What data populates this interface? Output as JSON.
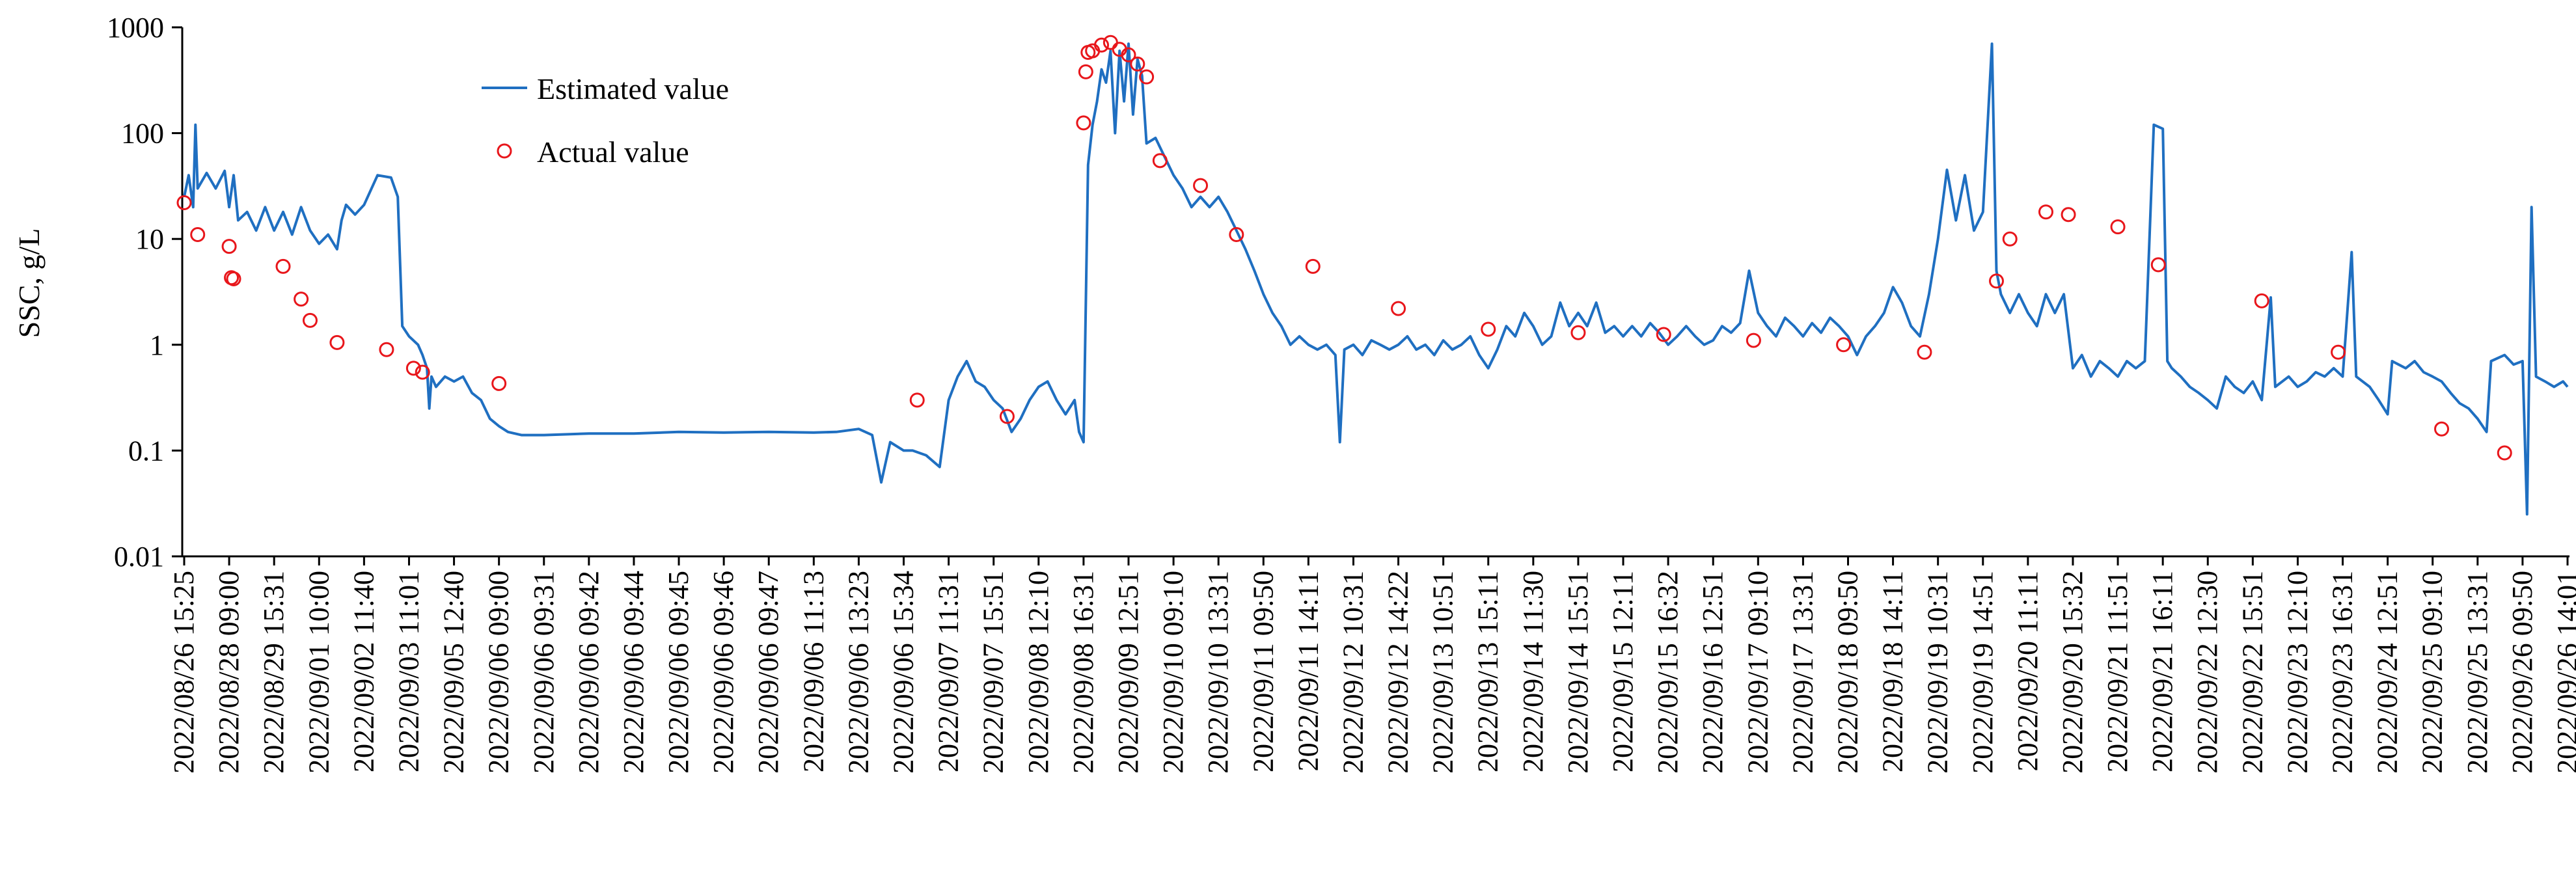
{
  "colors": {
    "estimated_line": "#1f6fc1",
    "actual_marker": "#e8161b",
    "axis": "#000000",
    "background": "#ffffff"
  },
  "chart_data": {
    "type": "line",
    "ylabel": "SSC, g/L",
    "yscale": "log",
    "ylim": [
      0.01,
      1000
    ],
    "yticks": [
      "0.01",
      "0.1",
      "1",
      "10",
      "100",
      "1000"
    ],
    "grid": false,
    "legend_position": "top-left",
    "xtick_labels": [
      "2022/08/26 15:25",
      "2022/08/28 09:00",
      "2022/08/29 15:31",
      "2022/09/01 10:00",
      "2022/09/02 11:40",
      "2022/09/03 11:01",
      "2022/09/05 12:40",
      "2022/09/06 09:00",
      "2022/09/06 09:31",
      "2022/09/06 09:42",
      "2022/09/06 09:44",
      "2022/09/06 09:45",
      "2022/09/06 09:46",
      "2022/09/06 09:47",
      "2022/09/06 11:13",
      "2022/09/06 13:23",
      "2022/09/06 15:34",
      "2022/09/07 11:31",
      "2022/09/07 15:51",
      "2022/09/08 12:10",
      "2022/09/08 16:31",
      "2022/09/09 12:51",
      "2022/09/10 09:10",
      "2022/09/10 13:31",
      "2022/09/11 09:50",
      "2022/09/11 14:11",
      "2022/09/12 10:31",
      "2022/09/12 14:22",
      "2022/09/13 10:51",
      "2022/09/13 15:11",
      "2022/09/14 11:30",
      "2022/09/14 15:51",
      "2022/09/15 12:11",
      "2022/09/15 16:32",
      "2022/09/16 12:51",
      "2022/09/17 09:10",
      "2022/09/17 13:31",
      "2022/09/18 09:50",
      "2022/09/18 14:11",
      "2022/09/19 10:31",
      "2022/09/19 14:51",
      "2022/09/20 11:11",
      "2022/09/20 15:32",
      "2022/09/21 11:51",
      "2022/09/21 16:11",
      "2022/09/22 12:30",
      "2022/09/22 15:51",
      "2022/09/23 12:10",
      "2022/09/23 16:31",
      "2022/09/24 12:51",
      "2022/09/25 09:10",
      "2022/09/25 13:31",
      "2022/09/26 09:50",
      "2022/09/26 14:01"
    ],
    "series": [
      {
        "name": "Estimated value",
        "style": "line",
        "points": [
          [
            0,
            25
          ],
          [
            0.1,
            40
          ],
          [
            0.2,
            20
          ],
          [
            0.25,
            120
          ],
          [
            0.3,
            30
          ],
          [
            0.5,
            42
          ],
          [
            0.7,
            30
          ],
          [
            0.9,
            44
          ],
          [
            1.0,
            20
          ],
          [
            1.1,
            40
          ],
          [
            1.2,
            15
          ],
          [
            1.4,
            18
          ],
          [
            1.6,
            12
          ],
          [
            1.8,
            20
          ],
          [
            2.0,
            12
          ],
          [
            2.2,
            18
          ],
          [
            2.4,
            11
          ],
          [
            2.6,
            20
          ],
          [
            2.8,
            12
          ],
          [
            3.0,
            9
          ],
          [
            3.2,
            11
          ],
          [
            3.4,
            8
          ],
          [
            3.5,
            15
          ],
          [
            3.6,
            21
          ],
          [
            3.8,
            17
          ],
          [
            4.0,
            21
          ],
          [
            4.3,
            40
          ],
          [
            4.6,
            38
          ],
          [
            4.75,
            25
          ],
          [
            4.85,
            1.5
          ],
          [
            5.0,
            1.2
          ],
          [
            5.2,
            1.0
          ],
          [
            5.3,
            0.8
          ],
          [
            5.4,
            0.6
          ],
          [
            5.45,
            0.25
          ],
          [
            5.5,
            0.5
          ],
          [
            5.6,
            0.4
          ],
          [
            5.8,
            0.5
          ],
          [
            6.0,
            0.45
          ],
          [
            6.2,
            0.5
          ],
          [
            6.4,
            0.35
          ],
          [
            6.6,
            0.3
          ],
          [
            6.8,
            0.2
          ],
          [
            7.0,
            0.17
          ],
          [
            7.2,
            0.15
          ],
          [
            7.5,
            0.14
          ],
          [
            8,
            0.14
          ],
          [
            9,
            0.145
          ],
          [
            10,
            0.145
          ],
          [
            11,
            0.15
          ],
          [
            12,
            0.148
          ],
          [
            13,
            0.15
          ],
          [
            14,
            0.148
          ],
          [
            14.5,
            0.15
          ],
          [
            15.0,
            0.16
          ],
          [
            15.3,
            0.14
          ],
          [
            15.5,
            0.05
          ],
          [
            15.7,
            0.12
          ],
          [
            16.0,
            0.1
          ],
          [
            16.2,
            0.1
          ],
          [
            16.5,
            0.09
          ],
          [
            16.8,
            0.07
          ],
          [
            17.0,
            0.3
          ],
          [
            17.2,
            0.5
          ],
          [
            17.4,
            0.7
          ],
          [
            17.6,
            0.45
          ],
          [
            17.8,
            0.4
          ],
          [
            18.0,
            0.3
          ],
          [
            18.2,
            0.25
          ],
          [
            18.4,
            0.15
          ],
          [
            18.6,
            0.2
          ],
          [
            18.8,
            0.3
          ],
          [
            19.0,
            0.4
          ],
          [
            19.2,
            0.45
          ],
          [
            19.4,
            0.3
          ],
          [
            19.6,
            0.22
          ],
          [
            19.8,
            0.3
          ],
          [
            19.9,
            0.15
          ],
          [
            20.0,
            0.12
          ],
          [
            20.1,
            50
          ],
          [
            20.2,
            120
          ],
          [
            20.3,
            200
          ],
          [
            20.4,
            400
          ],
          [
            20.5,
            300
          ],
          [
            20.6,
            600
          ],
          [
            20.7,
            100
          ],
          [
            20.8,
            600
          ],
          [
            20.9,
            200
          ],
          [
            21.0,
            700
          ],
          [
            21.1,
            150
          ],
          [
            21.2,
            500
          ],
          [
            21.3,
            350
          ],
          [
            21.4,
            80
          ],
          [
            21.6,
            90
          ],
          [
            21.8,
            60
          ],
          [
            22.0,
            40
          ],
          [
            22.2,
            30
          ],
          [
            22.4,
            20
          ],
          [
            22.6,
            25
          ],
          [
            22.8,
            20
          ],
          [
            23.0,
            25
          ],
          [
            23.2,
            18
          ],
          [
            23.4,
            12
          ],
          [
            23.6,
            8
          ],
          [
            23.8,
            5
          ],
          [
            24.0,
            3
          ],
          [
            24.2,
            2
          ],
          [
            24.4,
            1.5
          ],
          [
            24.6,
            1.0
          ],
          [
            24.8,
            1.2
          ],
          [
            25.0,
            1.0
          ],
          [
            25.2,
            0.9
          ],
          [
            25.4,
            1.0
          ],
          [
            25.6,
            0.8
          ],
          [
            25.7,
            0.12
          ],
          [
            25.8,
            0.9
          ],
          [
            26.0,
            1.0
          ],
          [
            26.2,
            0.8
          ],
          [
            26.4,
            1.1
          ],
          [
            26.6,
            1.0
          ],
          [
            26.8,
            0.9
          ],
          [
            27.0,
            1.0
          ],
          [
            27.2,
            1.2
          ],
          [
            27.4,
            0.9
          ],
          [
            27.6,
            1.0
          ],
          [
            27.8,
            0.8
          ],
          [
            28.0,
            1.1
          ],
          [
            28.2,
            0.9
          ],
          [
            28.4,
            1.0
          ],
          [
            28.6,
            1.2
          ],
          [
            28.8,
            0.8
          ],
          [
            29.0,
            0.6
          ],
          [
            29.2,
            0.9
          ],
          [
            29.4,
            1.5
          ],
          [
            29.6,
            1.2
          ],
          [
            29.8,
            2.0
          ],
          [
            30.0,
            1.5
          ],
          [
            30.2,
            1.0
          ],
          [
            30.4,
            1.2
          ],
          [
            30.6,
            2.5
          ],
          [
            30.8,
            1.5
          ],
          [
            31.0,
            2.0
          ],
          [
            31.2,
            1.5
          ],
          [
            31.4,
            2.5
          ],
          [
            31.6,
            1.3
          ],
          [
            31.8,
            1.5
          ],
          [
            32.0,
            1.2
          ],
          [
            32.2,
            1.5
          ],
          [
            32.4,
            1.2
          ],
          [
            32.6,
            1.6
          ],
          [
            32.8,
            1.3
          ],
          [
            33.0,
            1.0
          ],
          [
            33.2,
            1.2
          ],
          [
            33.4,
            1.5
          ],
          [
            33.6,
            1.2
          ],
          [
            33.8,
            1.0
          ],
          [
            34.0,
            1.1
          ],
          [
            34.2,
            1.5
          ],
          [
            34.4,
            1.3
          ],
          [
            34.6,
            1.6
          ],
          [
            34.8,
            5.0
          ],
          [
            35.0,
            2.0
          ],
          [
            35.2,
            1.5
          ],
          [
            35.4,
            1.2
          ],
          [
            35.6,
            1.8
          ],
          [
            35.8,
            1.5
          ],
          [
            36.0,
            1.2
          ],
          [
            36.2,
            1.6
          ],
          [
            36.4,
            1.3
          ],
          [
            36.6,
            1.8
          ],
          [
            36.8,
            1.5
          ],
          [
            37.0,
            1.2
          ],
          [
            37.2,
            0.8
          ],
          [
            37.4,
            1.2
          ],
          [
            37.6,
            1.5
          ],
          [
            37.8,
            2.0
          ],
          [
            38.0,
            3.5
          ],
          [
            38.2,
            2.5
          ],
          [
            38.4,
            1.5
          ],
          [
            38.6,
            1.2
          ],
          [
            38.8,
            3.0
          ],
          [
            39.0,
            10
          ],
          [
            39.2,
            45
          ],
          [
            39.4,
            15
          ],
          [
            39.6,
            40
          ],
          [
            39.8,
            12
          ],
          [
            40.0,
            18
          ],
          [
            40.2,
            700
          ],
          [
            40.3,
            5
          ],
          [
            40.4,
            3
          ],
          [
            40.6,
            2
          ],
          [
            40.8,
            3
          ],
          [
            41.0,
            2
          ],
          [
            41.2,
            1.5
          ],
          [
            41.4,
            3
          ],
          [
            41.6,
            2
          ],
          [
            41.8,
            3
          ],
          [
            42.0,
            0.6
          ],
          [
            42.2,
            0.8
          ],
          [
            42.4,
            0.5
          ],
          [
            42.6,
            0.7
          ],
          [
            42.8,
            0.6
          ],
          [
            43.0,
            0.5
          ],
          [
            43.2,
            0.7
          ],
          [
            43.4,
            0.6
          ],
          [
            43.6,
            0.7
          ],
          [
            43.8,
            120
          ],
          [
            44.0,
            110
          ],
          [
            44.1,
            0.7
          ],
          [
            44.2,
            0.6
          ],
          [
            44.4,
            0.5
          ],
          [
            44.6,
            0.4
          ],
          [
            44.8,
            0.35
          ],
          [
            45.0,
            0.3
          ],
          [
            45.2,
            0.25
          ],
          [
            45.4,
            0.5
          ],
          [
            45.6,
            0.4
          ],
          [
            45.8,
            0.35
          ],
          [
            46.0,
            0.45
          ],
          [
            46.2,
            0.3
          ],
          [
            46.4,
            2.8
          ],
          [
            46.5,
            0.4
          ],
          [
            46.8,
            0.5
          ],
          [
            47.0,
            0.4
          ],
          [
            47.2,
            0.45
          ],
          [
            47.4,
            0.55
          ],
          [
            47.6,
            0.5
          ],
          [
            47.8,
            0.6
          ],
          [
            48.0,
            0.5
          ],
          [
            48.2,
            7.5
          ],
          [
            48.3,
            0.5
          ],
          [
            48.6,
            0.4
          ],
          [
            48.8,
            0.3
          ],
          [
            49.0,
            0.22
          ],
          [
            49.1,
            0.7
          ],
          [
            49.4,
            0.6
          ],
          [
            49.6,
            0.7
          ],
          [
            49.8,
            0.55
          ],
          [
            50.0,
            0.5
          ],
          [
            50.2,
            0.45
          ],
          [
            50.4,
            0.35
          ],
          [
            50.6,
            0.28
          ],
          [
            50.8,
            0.25
          ],
          [
            51.0,
            0.2
          ],
          [
            51.2,
            0.15
          ],
          [
            51.3,
            0.7
          ],
          [
            51.6,
            0.8
          ],
          [
            51.8,
            0.65
          ],
          [
            52.0,
            0.7
          ],
          [
            52.1,
            0.025
          ],
          [
            52.2,
            20
          ],
          [
            52.3,
            0.5
          ],
          [
            52.5,
            0.45
          ],
          [
            52.7,
            0.4
          ],
          [
            52.9,
            0.45
          ],
          [
            53.0,
            0.4
          ]
        ]
      },
      {
        "name": "Actual value",
        "style": "marker",
        "points": [
          [
            0,
            22
          ],
          [
            0.3,
            11
          ],
          [
            1.0,
            8.5
          ],
          [
            1.05,
            4.3
          ],
          [
            1.1,
            4.2
          ],
          [
            2.2,
            5.5
          ],
          [
            2.6,
            2.7
          ],
          [
            2.8,
            1.7
          ],
          [
            3.4,
            1.05
          ],
          [
            4.5,
            0.9
          ],
          [
            5.1,
            0.6
          ],
          [
            5.3,
            0.55
          ],
          [
            7.0,
            0.43
          ],
          [
            16.3,
            0.3
          ],
          [
            18.3,
            0.21
          ],
          [
            20.0,
            125
          ],
          [
            20.05,
            380
          ],
          [
            20.1,
            580
          ],
          [
            20.2,
            600
          ],
          [
            20.4,
            680
          ],
          [
            20.6,
            720
          ],
          [
            20.8,
            620
          ],
          [
            21.0,
            550
          ],
          [
            21.2,
            450
          ],
          [
            21.4,
            340
          ],
          [
            21.7,
            55
          ],
          [
            22.6,
            32
          ],
          [
            23.4,
            11
          ],
          [
            25.1,
            5.5
          ],
          [
            27.0,
            2.2
          ],
          [
            29.0,
            1.4
          ],
          [
            31.0,
            1.3
          ],
          [
            32.9,
            1.25
          ],
          [
            34.9,
            1.1
          ],
          [
            36.9,
            1.0
          ],
          [
            38.7,
            0.85
          ],
          [
            40.3,
            4.0
          ],
          [
            40.6,
            10
          ],
          [
            41.4,
            18
          ],
          [
            41.9,
            17
          ],
          [
            43.0,
            13
          ],
          [
            43.9,
            5.7
          ],
          [
            46.2,
            2.6
          ],
          [
            47.9,
            0.85
          ],
          [
            50.2,
            0.16
          ],
          [
            51.6,
            0.095
          ]
        ]
      }
    ]
  }
}
